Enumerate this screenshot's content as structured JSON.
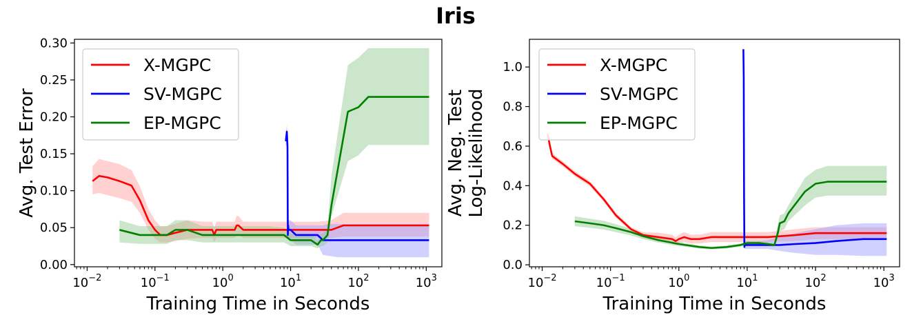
{
  "figure": {
    "title": "Iris"
  },
  "colors": {
    "X-MGPC": "#ff0000",
    "SV-MGPC": "#0000ff",
    "EP-MGPC": "#008000",
    "X-MGPC_band": "#ff9999",
    "SV-MGPC_band": "#9999ff",
    "EP-MGPC_band": "#8fc88f"
  },
  "chart_data": [
    {
      "type": "line",
      "title": "",
      "xlabel": "Training Time in Seconds",
      "ylabel": "Avg. Test Error",
      "xscale": "log",
      "xlim": [
        0.0065,
        1700
      ],
      "ylim": [
        -0.003,
        0.305
      ],
      "xticks": [
        0.01,
        0.1,
        1,
        10,
        100,
        1000
      ],
      "xtick_labels": [
        [
          "10",
          "−2"
        ],
        [
          "10",
          "−1"
        ],
        [
          "10",
          "0"
        ],
        [
          "10",
          "1"
        ],
        [
          "10",
          "2"
        ],
        [
          "10",
          "3"
        ]
      ],
      "yticks": [
        0.0,
        0.05,
        0.1,
        0.15,
        0.2,
        0.25,
        0.3
      ],
      "ytick_labels": [
        "0.00",
        "0.05",
        "0.10",
        "0.15",
        "0.20",
        "0.25",
        "0.30"
      ],
      "legend": {
        "location": "upper-left",
        "entries": [
          "X-MGPC",
          "SV-MGPC",
          "EP-MGPC"
        ]
      },
      "series": [
        {
          "name": "X-MGPC",
          "x": [
            0.012,
            0.015,
            0.02,
            0.03,
            0.045,
            0.06,
            0.08,
            0.1,
            0.12,
            0.15,
            0.2,
            0.3,
            0.5,
            0.7,
            0.75,
            0.8,
            1.0,
            1.5,
            1.6,
            1.7,
            2.0,
            3.0,
            5.0,
            8.0,
            10.0,
            15.0,
            25.0,
            40.0,
            60.0,
            100.0,
            200.0,
            500.0,
            1100.0
          ],
          "y": [
            0.113,
            0.12,
            0.118,
            0.113,
            0.107,
            0.087,
            0.06,
            0.047,
            0.04,
            0.04,
            0.043,
            0.047,
            0.047,
            0.047,
            0.04,
            0.047,
            0.047,
            0.047,
            0.053,
            0.053,
            0.047,
            0.047,
            0.047,
            0.047,
            0.047,
            0.047,
            0.047,
            0.047,
            0.053,
            0.053,
            0.053,
            0.053,
            0.053
          ],
          "lower": [
            0.095,
            0.097,
            0.094,
            0.09,
            0.085,
            0.07,
            0.047,
            0.035,
            0.03,
            0.03,
            0.032,
            0.035,
            0.036,
            0.036,
            0.03,
            0.036,
            0.036,
            0.036,
            0.04,
            0.04,
            0.036,
            0.036,
            0.036,
            0.036,
            0.036,
            0.036,
            0.036,
            0.036,
            0.038,
            0.038,
            0.038,
            0.038,
            0.038
          ],
          "upper": [
            0.133,
            0.143,
            0.14,
            0.136,
            0.128,
            0.106,
            0.075,
            0.06,
            0.052,
            0.052,
            0.055,
            0.06,
            0.058,
            0.058,
            0.05,
            0.058,
            0.058,
            0.058,
            0.066,
            0.066,
            0.058,
            0.058,
            0.058,
            0.058,
            0.058,
            0.058,
            0.058,
            0.06,
            0.07,
            0.07,
            0.07,
            0.07,
            0.07
          ]
        },
        {
          "name": "SV-MGPC",
          "x": [
            8.5,
            8.8,
            9.0,
            9.1,
            9.2,
            9.3,
            9.5,
            10.0,
            12.0,
            15.0,
            20.0,
            25.0,
            30.0,
            35.0,
            50.0,
            100.0,
            500.0,
            1100.0
          ],
          "y": [
            0.167,
            0.18,
            0.16,
            0.04,
            0.053,
            0.047,
            0.047,
            0.047,
            0.04,
            0.04,
            0.04,
            0.04,
            0.033,
            0.033,
            0.033,
            0.033,
            0.033,
            0.033
          ],
          "lower": [
            0.155,
            0.17,
            0.148,
            0.03,
            0.038,
            0.033,
            0.033,
            0.033,
            0.027,
            0.027,
            0.027,
            0.027,
            0.013,
            0.012,
            0.01,
            0.01,
            0.01,
            0.01
          ],
          "upper": [
            0.178,
            0.19,
            0.172,
            0.05,
            0.066,
            0.06,
            0.06,
            0.06,
            0.053,
            0.053,
            0.053,
            0.053,
            0.053,
            0.055,
            0.055,
            0.055,
            0.055,
            0.055
          ]
        },
        {
          "name": "EP-MGPC",
          "x": [
            0.03,
            0.06,
            0.1,
            0.15,
            0.2,
            0.3,
            0.5,
            1.0,
            2.0,
            5.0,
            8.0,
            10.0,
            15.0,
            20.0,
            25.0,
            28.0,
            30.0,
            35.0,
            40.0,
            70.0,
            100.0,
            140.0,
            1100.0
          ],
          "y": [
            0.047,
            0.04,
            0.04,
            0.04,
            0.047,
            0.047,
            0.04,
            0.04,
            0.04,
            0.04,
            0.04,
            0.033,
            0.033,
            0.033,
            0.027,
            0.033,
            0.033,
            0.04,
            0.08,
            0.207,
            0.213,
            0.227,
            0.227
          ],
          "lower": [
            0.03,
            0.028,
            0.028,
            0.028,
            0.033,
            0.033,
            0.03,
            0.03,
            0.03,
            0.03,
            0.03,
            0.025,
            0.025,
            0.025,
            0.022,
            0.025,
            0.025,
            0.03,
            0.065,
            0.14,
            0.148,
            0.162,
            0.162
          ],
          "upper": [
            0.06,
            0.052,
            0.052,
            0.052,
            0.06,
            0.06,
            0.052,
            0.052,
            0.052,
            0.052,
            0.05,
            0.042,
            0.042,
            0.042,
            0.033,
            0.042,
            0.042,
            0.05,
            0.12,
            0.27,
            0.28,
            0.293,
            0.293
          ]
        }
      ]
    },
    {
      "type": "line",
      "title": "",
      "xlabel": "Training Time in Seconds",
      "ylabel": "Avg. Neg. Test\nLog-Likelihood",
      "xscale": "log",
      "xlim": [
        0.0065,
        1700
      ],
      "ylim": [
        -0.01,
        1.14
      ],
      "xticks": [
        0.01,
        0.1,
        1,
        10,
        100,
        1000
      ],
      "xtick_labels": [
        [
          "10",
          "−2"
        ],
        [
          "10",
          "−1"
        ],
        [
          "10",
          "0"
        ],
        [
          "10",
          "1"
        ],
        [
          "10",
          "2"
        ],
        [
          "10",
          "3"
        ]
      ],
      "yticks": [
        0.0,
        0.2,
        0.4,
        0.6,
        0.8,
        1.0
      ],
      "ytick_labels": [
        "0.0",
        "0.2",
        "0.4",
        "0.6",
        "0.8",
        "1.0"
      ],
      "legend": {
        "location": "upper-left",
        "entries": [
          "X-MGPC",
          "SV-MGPC",
          "EP-MGPC"
        ]
      },
      "series": [
        {
          "name": "X-MGPC",
          "x": [
            0.012,
            0.013,
            0.014,
            0.02,
            0.03,
            0.05,
            0.08,
            0.12,
            0.2,
            0.3,
            0.5,
            0.8,
            0.9,
            1.0,
            1.2,
            1.5,
            2.0,
            3.0,
            5.0,
            10.0,
            20.0,
            50.0,
            100.0,
            200.0,
            500.0,
            1100.0
          ],
          "y": [
            0.66,
            0.6,
            0.55,
            0.51,
            0.46,
            0.41,
            0.33,
            0.25,
            0.18,
            0.15,
            0.14,
            0.13,
            0.12,
            0.13,
            0.14,
            0.13,
            0.13,
            0.14,
            0.14,
            0.14,
            0.14,
            0.15,
            0.16,
            0.16,
            0.16,
            0.16
          ],
          "lower": [
            0.64,
            0.585,
            0.535,
            0.497,
            0.447,
            0.397,
            0.318,
            0.238,
            0.17,
            0.135,
            0.118,
            0.108,
            0.1,
            0.108,
            0.115,
            0.108,
            0.108,
            0.115,
            0.115,
            0.115,
            0.115,
            0.12,
            0.13,
            0.13,
            0.13,
            0.13
          ],
          "upper": [
            0.68,
            0.615,
            0.565,
            0.523,
            0.473,
            0.423,
            0.342,
            0.262,
            0.19,
            0.165,
            0.162,
            0.152,
            0.14,
            0.152,
            0.165,
            0.152,
            0.152,
            0.165,
            0.165,
            0.165,
            0.165,
            0.18,
            0.19,
            0.19,
            0.19,
            0.19
          ]
        },
        {
          "name": "SV-MGPC",
          "x": [
            8.8,
            8.9,
            9.0,
            9.1,
            9.2,
            9.5,
            10.0,
            15.0,
            20.0,
            30.0,
            50.0,
            100.0,
            200.0,
            500.0,
            1100.0
          ],
          "y": [
            1.09,
            0.95,
            0.35,
            0.09,
            0.1,
            0.1,
            0.1,
            0.1,
            0.1,
            0.1,
            0.105,
            0.11,
            0.12,
            0.13,
            0.13
          ],
          "lower": [
            1.07,
            0.92,
            0.32,
            0.07,
            0.08,
            0.08,
            0.08,
            0.08,
            0.08,
            0.07,
            0.06,
            0.05,
            0.05,
            0.045,
            0.045
          ],
          "upper": [
            1.11,
            0.98,
            0.38,
            0.11,
            0.12,
            0.12,
            0.12,
            0.12,
            0.125,
            0.14,
            0.16,
            0.18,
            0.2,
            0.21,
            0.21
          ]
        },
        {
          "name": "EP-MGPC",
          "x": [
            0.03,
            0.05,
            0.08,
            0.12,
            0.2,
            0.3,
            0.5,
            1.0,
            2.0,
            3.0,
            5.0,
            8.0,
            10.0,
            15.0,
            20.0,
            25.0,
            28.0,
            30.0,
            35.0,
            40.0,
            70.0,
            100.0,
            150.0,
            1100.0
          ],
          "y": [
            0.22,
            0.21,
            0.2,
            0.185,
            0.165,
            0.145,
            0.125,
            0.105,
            0.09,
            0.085,
            0.09,
            0.1,
            0.11,
            0.11,
            0.105,
            0.1,
            0.16,
            0.21,
            0.22,
            0.26,
            0.37,
            0.41,
            0.42,
            0.42
          ],
          "lower": [
            0.195,
            0.187,
            0.178,
            0.165,
            0.148,
            0.13,
            0.112,
            0.095,
            0.082,
            0.078,
            0.082,
            0.092,
            0.1,
            0.1,
            0.095,
            0.09,
            0.13,
            0.17,
            0.18,
            0.22,
            0.3,
            0.34,
            0.35,
            0.35
          ],
          "upper": [
            0.245,
            0.233,
            0.222,
            0.205,
            0.182,
            0.16,
            0.138,
            0.115,
            0.098,
            0.092,
            0.098,
            0.108,
            0.12,
            0.12,
            0.115,
            0.11,
            0.2,
            0.25,
            0.26,
            0.3,
            0.44,
            0.48,
            0.5,
            0.5
          ]
        }
      ]
    }
  ]
}
